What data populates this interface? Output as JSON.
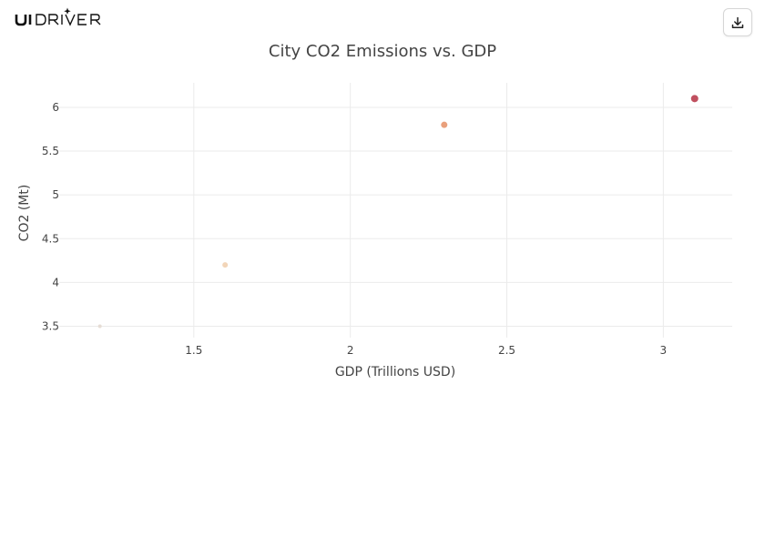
{
  "header": {
    "logo_text": "UIDRIVER",
    "download_icon": "download-icon"
  },
  "colors": {
    "text": "#444444",
    "grid": "#ebebeb",
    "logo": "#111111"
  },
  "chart_data": {
    "type": "scatter",
    "title": "City CO2 Emissions vs. GDP",
    "xlabel": "GDP (Trillions USD)",
    "ylabel": "CO2 (Mt)",
    "xlim": [
      1.07,
      3.22
    ],
    "ylim": [
      3.37,
      6.28
    ],
    "xticks": [
      1.5,
      2,
      2.5,
      3
    ],
    "xtick_labels": [
      "1.5",
      "2",
      "2.5",
      "3"
    ],
    "yticks": [
      3.5,
      4,
      4.5,
      5,
      5.5,
      6
    ],
    "ytick_labels": [
      "3.5",
      "4",
      "4.5",
      "5",
      "5.5",
      "6"
    ],
    "grid": true,
    "legend": "none",
    "points": [
      {
        "x": 1.2,
        "y": 3.5,
        "color": "#e6ddd5",
        "size": 2
      },
      {
        "x": 1.6,
        "y": 4.2,
        "color": "#f2d5b8",
        "size": 3
      },
      {
        "x": 2.3,
        "y": 5.8,
        "color": "#e9a07c",
        "size": 3.5
      },
      {
        "x": 3.1,
        "y": 6.1,
        "color": "#c0505f",
        "size": 4
      }
    ]
  }
}
